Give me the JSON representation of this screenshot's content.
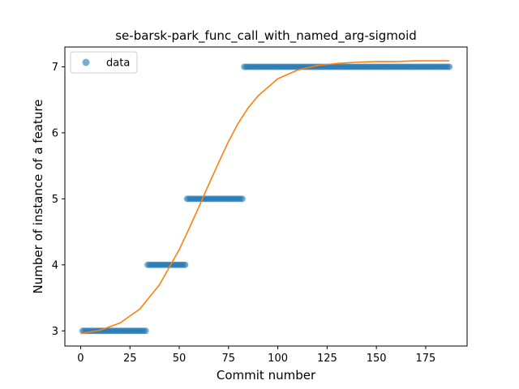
{
  "chart_data": {
    "type": "scatter",
    "title": "se-barsk-park_func_call_with_named_arg-sigmoid",
    "xlabel": "Commit number",
    "ylabel": "Number of instance of a feature",
    "xlim": [
      -8,
      196
    ],
    "ylim": [
      2.77,
      7.3
    ],
    "x_ticks": [
      0,
      25,
      50,
      75,
      100,
      125,
      150,
      175
    ],
    "y_ticks": [
      3,
      4,
      5,
      6,
      7
    ],
    "legend": {
      "placement": "top-left",
      "entries": [
        "data"
      ]
    },
    "grid": false,
    "colors": {
      "data": "#1f77b4",
      "fit": "#ff7f0e"
    },
    "series": [
      {
        "name": "data",
        "kind": "scatter",
        "segments": [
          {
            "x_from": 1,
            "x_to": 33,
            "y": 3
          },
          {
            "x_from": 34,
            "x_to": 53,
            "y": 4
          },
          {
            "x_from": 54,
            "x_to": 82,
            "y": 5
          },
          {
            "x_from": 83,
            "x_to": 187,
            "y": 7
          }
        ]
      },
      {
        "kind": "line",
        "curve": "sigmoid",
        "x_range": [
          0,
          187
        ],
        "points": [
          [
            0,
            2.96
          ],
          [
            10,
            3.01
          ],
          [
            20,
            3.12
          ],
          [
            30,
            3.33
          ],
          [
            40,
            3.7
          ],
          [
            50,
            4.23
          ],
          [
            55,
            4.55
          ],
          [
            60,
            4.88
          ],
          [
            65,
            5.22
          ],
          [
            70,
            5.55
          ],
          [
            75,
            5.87
          ],
          [
            80,
            6.15
          ],
          [
            85,
            6.38
          ],
          [
            90,
            6.56
          ],
          [
            100,
            6.82
          ],
          [
            110,
            6.95
          ],
          [
            120,
            7.02
          ],
          [
            130,
            7.05
          ],
          [
            140,
            7.07
          ],
          [
            150,
            7.08
          ],
          [
            160,
            7.08
          ],
          [
            170,
            7.09
          ],
          [
            187,
            7.09
          ]
        ]
      }
    ]
  }
}
